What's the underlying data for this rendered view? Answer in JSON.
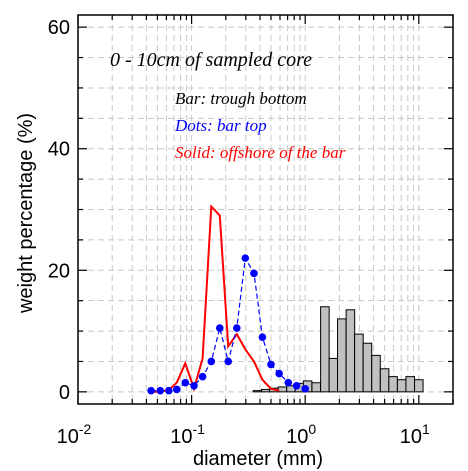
{
  "chart_data": {
    "type": "bar",
    "xlabel": "diameter (mm)",
    "ylabel": "weight percentage (%)",
    "xscale": "log",
    "xlim": [
      0.01,
      20
    ],
    "ylim": [
      -2,
      62
    ],
    "grid": true,
    "x_ticks": [
      {
        "base": "10",
        "exp": "-2",
        "value": 0.01
      },
      {
        "base": "10",
        "exp": "0",
        "value": 1
      },
      {
        "base": "10",
        "exp": "1",
        "value": 10
      }
    ],
    "x_ticks_mid": {
      "base": "10",
      "exp": "-1",
      "value": 0.1
    },
    "y_ticks": [
      "0",
      "20",
      "40",
      "60"
    ],
    "y_tick_values": [
      0,
      20,
      40,
      60
    ],
    "annotations": {
      "title": "0 - 10cm of sampled core",
      "bar": "Bar: trough bottom",
      "dots": "Dots: bar top",
      "solid": "Solid: offshore of the bar"
    },
    "series": [
      {
        "style": "bar",
        "color": "#c0c0c0",
        "edge": "#000000",
        "x": [
          0.38,
          0.45,
          0.53,
          0.63,
          0.75,
          0.89,
          1.05,
          1.25,
          1.49,
          1.77,
          2.1,
          2.5,
          2.97,
          3.53,
          4.2,
          5.0,
          5.94,
          7.07,
          8.4,
          10.0
        ],
        "values": [
          0.2,
          0.4,
          0.6,
          0.8,
          1.0,
          1.4,
          1.8,
          1.5,
          14.0,
          5.5,
          12.0,
          13.5,
          9.5,
          8.0,
          6.0,
          3.8,
          2.5,
          2.0,
          2.5,
          2.0
        ]
      },
      {
        "style": "dots-dashed",
        "color": "#0000ff",
        "x": [
          0.044,
          0.053,
          0.063,
          0.074,
          0.088,
          0.105,
          0.125,
          0.149,
          0.177,
          0.21,
          0.25,
          0.297,
          0.354,
          0.42,
          0.5,
          0.59,
          0.71,
          0.84,
          1.0
        ],
        "values": [
          0.2,
          0.2,
          0.2,
          0.4,
          1.5,
          1.0,
          2.5,
          5.0,
          10.5,
          5.0,
          10.5,
          22.0,
          19.5,
          9.0,
          4.5,
          3.0,
          1.5,
          1.0,
          0.5
        ]
      },
      {
        "style": "solid-line",
        "color": "#ff0000",
        "x": [
          0.044,
          0.053,
          0.063,
          0.074,
          0.088,
          0.105,
          0.125,
          0.149,
          0.177,
          0.21,
          0.25,
          0.297,
          0.354,
          0.42,
          0.5,
          0.59
        ],
        "values": [
          0.0,
          0.0,
          0.3,
          1.5,
          4.7,
          0.5,
          5.5,
          30.5,
          29.0,
          7.5,
          9.5,
          7.0,
          5.0,
          2.0,
          0.5,
          0.2
        ]
      }
    ]
  }
}
